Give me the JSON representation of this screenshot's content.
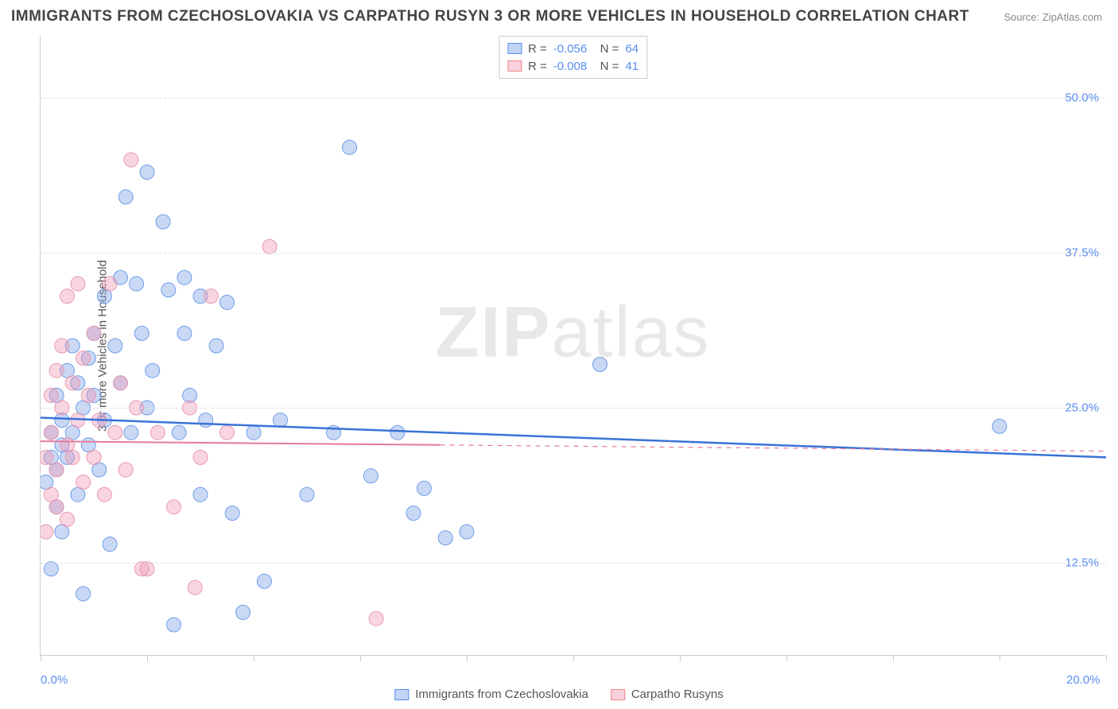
{
  "title": "IMMIGRANTS FROM CZECHOSLOVAKIA VS CARPATHO RUSYN 3 OR MORE VEHICLES IN HOUSEHOLD CORRELATION CHART",
  "source": "Source: ZipAtlas.com",
  "ylabel": "3 or more Vehicles in Household",
  "watermark_a": "ZIP",
  "watermark_b": "atlas",
  "chart": {
    "type": "scatter",
    "background_color": "#ffffff",
    "grid_color": "#dddddd",
    "axis_color": "#cccccc",
    "xlim": [
      0,
      20
    ],
    "ylim": [
      5,
      55
    ],
    "y_ticks": [
      12.5,
      25.0,
      37.5,
      50.0
    ],
    "y_tick_labels": [
      "12.5%",
      "25.0%",
      "37.5%",
      "50.0%"
    ],
    "x_ticks": [
      0,
      2,
      4,
      6,
      8,
      10,
      12,
      14,
      16,
      18,
      20
    ],
    "x_axis_labels": [
      {
        "v": 0,
        "t": "0.0%"
      },
      {
        "v": 20,
        "t": "20.0%"
      }
    ],
    "series": [
      {
        "name": "Immigrants from Czechoslovakia",
        "color_fill": "rgba(120,160,230,0.40)",
        "color_stroke": "#6f9de8",
        "marker_radius": 9,
        "R": "-0.056",
        "N": "64",
        "trend": {
          "x1": 0,
          "y1": 24.2,
          "x2": 20,
          "y2": 21.0,
          "solid_until": 20,
          "color": "#3a73d8",
          "width": 2.5
        },
        "points": [
          [
            0.1,
            19
          ],
          [
            0.2,
            21
          ],
          [
            0.2,
            23
          ],
          [
            0.3,
            17
          ],
          [
            0.3,
            20
          ],
          [
            0.3,
            26
          ],
          [
            0.4,
            22
          ],
          [
            0.4,
            24
          ],
          [
            0.5,
            21
          ],
          [
            0.5,
            28
          ],
          [
            0.6,
            23
          ],
          [
            0.6,
            30
          ],
          [
            0.7,
            18
          ],
          [
            0.7,
            27
          ],
          [
            0.8,
            25
          ],
          [
            0.9,
            22
          ],
          [
            0.9,
            29
          ],
          [
            1.0,
            26
          ],
          [
            1.0,
            31
          ],
          [
            1.1,
            20
          ],
          [
            1.2,
            34
          ],
          [
            1.2,
            24
          ],
          [
            1.4,
            30
          ],
          [
            1.5,
            35.5
          ],
          [
            1.5,
            27
          ],
          [
            1.6,
            42
          ],
          [
            1.7,
            23
          ],
          [
            1.8,
            35
          ],
          [
            1.9,
            31
          ],
          [
            2.0,
            25
          ],
          [
            2.0,
            44
          ],
          [
            2.1,
            28
          ],
          [
            2.3,
            40
          ],
          [
            2.4,
            34.5
          ],
          [
            2.6,
            23
          ],
          [
            2.7,
            35.5
          ],
          [
            2.7,
            31
          ],
          [
            2.8,
            26
          ],
          [
            3.0,
            34
          ],
          [
            3.0,
            18
          ],
          [
            3.1,
            24
          ],
          [
            3.3,
            30
          ],
          [
            3.5,
            33.5
          ],
          [
            3.6,
            16.5
          ],
          [
            3.8,
            8.5
          ],
          [
            4.0,
            23
          ],
          [
            4.2,
            11
          ],
          [
            4.5,
            24
          ],
          [
            5.0,
            18
          ],
          [
            5.5,
            23
          ],
          [
            5.8,
            46
          ],
          [
            6.2,
            19.5
          ],
          [
            6.7,
            23
          ],
          [
            7.0,
            16.5
          ],
          [
            7.2,
            18.5
          ],
          [
            7.6,
            14.5
          ],
          [
            8.0,
            15
          ],
          [
            10.5,
            28.5
          ],
          [
            18.0,
            23.5
          ],
          [
            2.5,
            7.5
          ],
          [
            1.3,
            14
          ],
          [
            0.8,
            10
          ],
          [
            0.4,
            15
          ],
          [
            0.2,
            12
          ]
        ]
      },
      {
        "name": "Carpatho Rusyns",
        "color_fill": "rgba(240,150,180,0.40)",
        "color_stroke": "#e89ab0",
        "marker_radius": 9,
        "R": "-0.008",
        "N": "41",
        "trend": {
          "x1": 0,
          "y1": 22.3,
          "x2": 20,
          "y2": 21.5,
          "solid_until": 7.5,
          "color": "#e47a9a",
          "width": 2
        },
        "points": [
          [
            0.1,
            15
          ],
          [
            0.1,
            21
          ],
          [
            0.2,
            18
          ],
          [
            0.2,
            23
          ],
          [
            0.2,
            26
          ],
          [
            0.3,
            20
          ],
          [
            0.3,
            28
          ],
          [
            0.3,
            17
          ],
          [
            0.4,
            25
          ],
          [
            0.4,
            30
          ],
          [
            0.5,
            22
          ],
          [
            0.5,
            34
          ],
          [
            0.5,
            16
          ],
          [
            0.6,
            27
          ],
          [
            0.6,
            21
          ],
          [
            0.7,
            35
          ],
          [
            0.7,
            24
          ],
          [
            0.8,
            19
          ],
          [
            0.8,
            29
          ],
          [
            0.9,
            26
          ],
          [
            1.0,
            31
          ],
          [
            1.0,
            21
          ],
          [
            1.1,
            24
          ],
          [
            1.2,
            18
          ],
          [
            1.3,
            35
          ],
          [
            1.4,
            23
          ],
          [
            1.5,
            27
          ],
          [
            1.6,
            20
          ],
          [
            1.7,
            45
          ],
          [
            1.8,
            25
          ],
          [
            2.0,
            12
          ],
          [
            2.2,
            23
          ],
          [
            2.5,
            17
          ],
          [
            2.8,
            25
          ],
          [
            3.0,
            21
          ],
          [
            3.2,
            34
          ],
          [
            3.5,
            23
          ],
          [
            4.3,
            38
          ],
          [
            2.9,
            10.5
          ],
          [
            6.3,
            8
          ],
          [
            1.9,
            12
          ]
        ]
      }
    ],
    "legend_bottom": [
      "Immigrants from Czechoslovakia",
      "Carpatho Rusyns"
    ],
    "tick_label_color": "#5b8def",
    "label_fontsize": 15,
    "title_fontsize": 19
  }
}
